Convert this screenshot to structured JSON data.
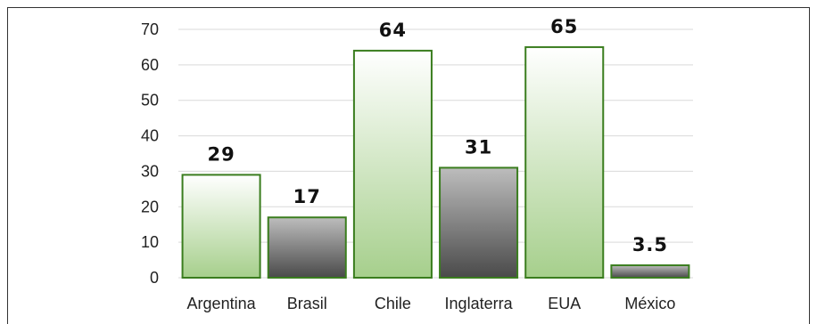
{
  "chart_data": {
    "type": "bar",
    "categories": [
      "Argentina",
      "Brasil",
      "Chile",
      "Inglaterra",
      "EUA",
      "México"
    ],
    "values": [
      29,
      17,
      64,
      31,
      65,
      3.5
    ],
    "data_labels": [
      "29",
      "17",
      "64",
      "31",
      "65",
      "3.5"
    ],
    "bar_styles": [
      "green",
      "gray",
      "green",
      "gray",
      "green",
      "gray"
    ],
    "title": "",
    "xlabel": "",
    "ylabel": "",
    "ylim": [
      0,
      70
    ],
    "yticks": [
      0,
      10,
      20,
      30,
      40,
      50,
      60,
      70
    ],
    "grid": true,
    "legend": "none",
    "colors": {
      "green_top": "#ffffff",
      "green_bottom": "#a6cf8c",
      "green_border": "#3a7d1e",
      "gray_top": "#bdbdbd",
      "gray_bottom": "#4a4a4a",
      "gray_border": "#3a7d1e",
      "grid": "#d9d9d9"
    }
  }
}
